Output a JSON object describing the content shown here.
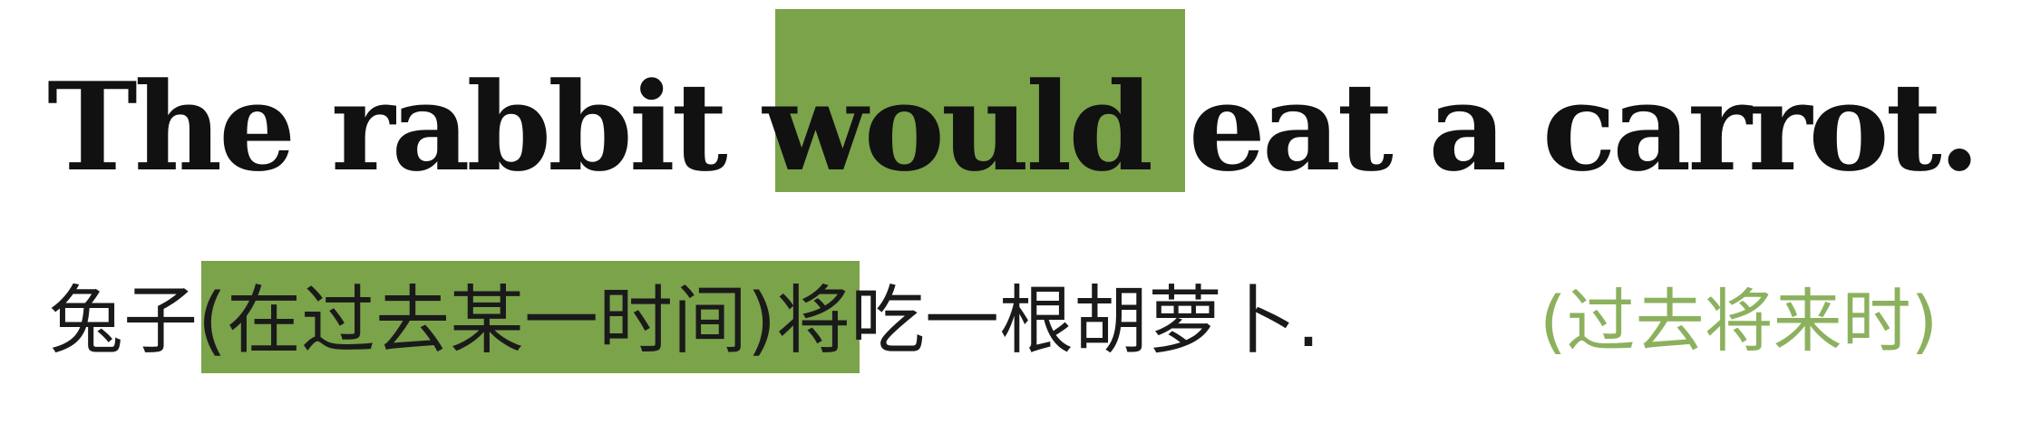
{
  "colors": {
    "highlight": "#7ba34a",
    "tense_label": "#8cb15e",
    "text": "#111111",
    "background": "#ffffff"
  },
  "english": {
    "before": "The rabbit ",
    "highlight": "would",
    "after": " eat a carrot."
  },
  "chinese": {
    "before": "兔子",
    "highlight": "(在过去某一时间)将",
    "after": "吃一根胡萝卜."
  },
  "tense_label": "(过去将来时)"
}
